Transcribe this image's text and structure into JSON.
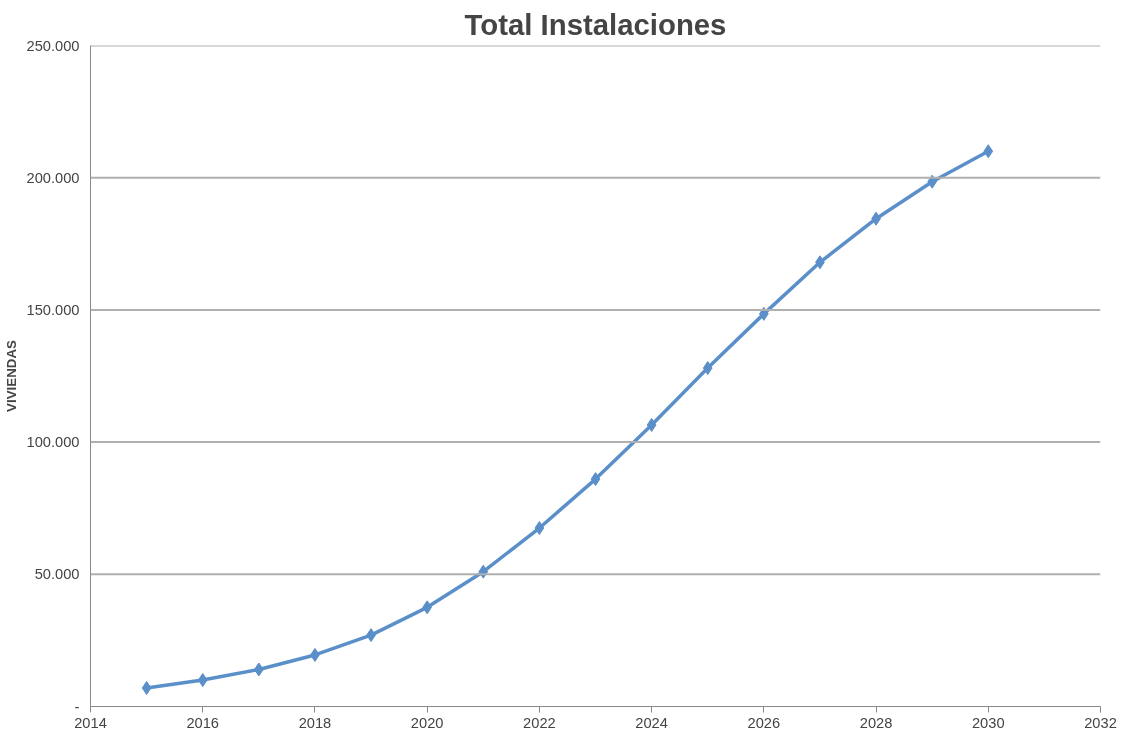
{
  "chart_data": {
    "type": "line",
    "title": "Total Instalaciones",
    "ylabel": "VIVIENDAS",
    "x": [
      2015,
      2016,
      2017,
      2018,
      2019,
      2020,
      2021,
      2022,
      2023,
      2024,
      2025,
      2026,
      2027,
      2028,
      2029,
      2030
    ],
    "series": [
      {
        "color": "#5b8fc9",
        "values": [
          7000,
          10000,
          14000,
          19500,
          27000,
          37500,
          51000,
          67500,
          86000,
          106500,
          128000,
          148500,
          168000,
          184500,
          198500,
          210000
        ]
      }
    ],
    "xlim": [
      2014,
      2032
    ],
    "xticks": [
      2014,
      2016,
      2018,
      2020,
      2022,
      2024,
      2026,
      2028,
      2030,
      2032
    ],
    "ylim": [
      0,
      250000
    ],
    "yticks": [
      {
        "value": 0,
        "label": "-"
      },
      {
        "value": 50000,
        "label": "50.000"
      },
      {
        "value": 100000,
        "label": "100.000"
      },
      {
        "value": 150000,
        "label": "150.000"
      },
      {
        "value": 200000,
        "label": "200.000"
      },
      {
        "value": 250000,
        "label": "250.000"
      }
    ],
    "grid": "y",
    "marker": "diamond",
    "line_style": "solid"
  }
}
